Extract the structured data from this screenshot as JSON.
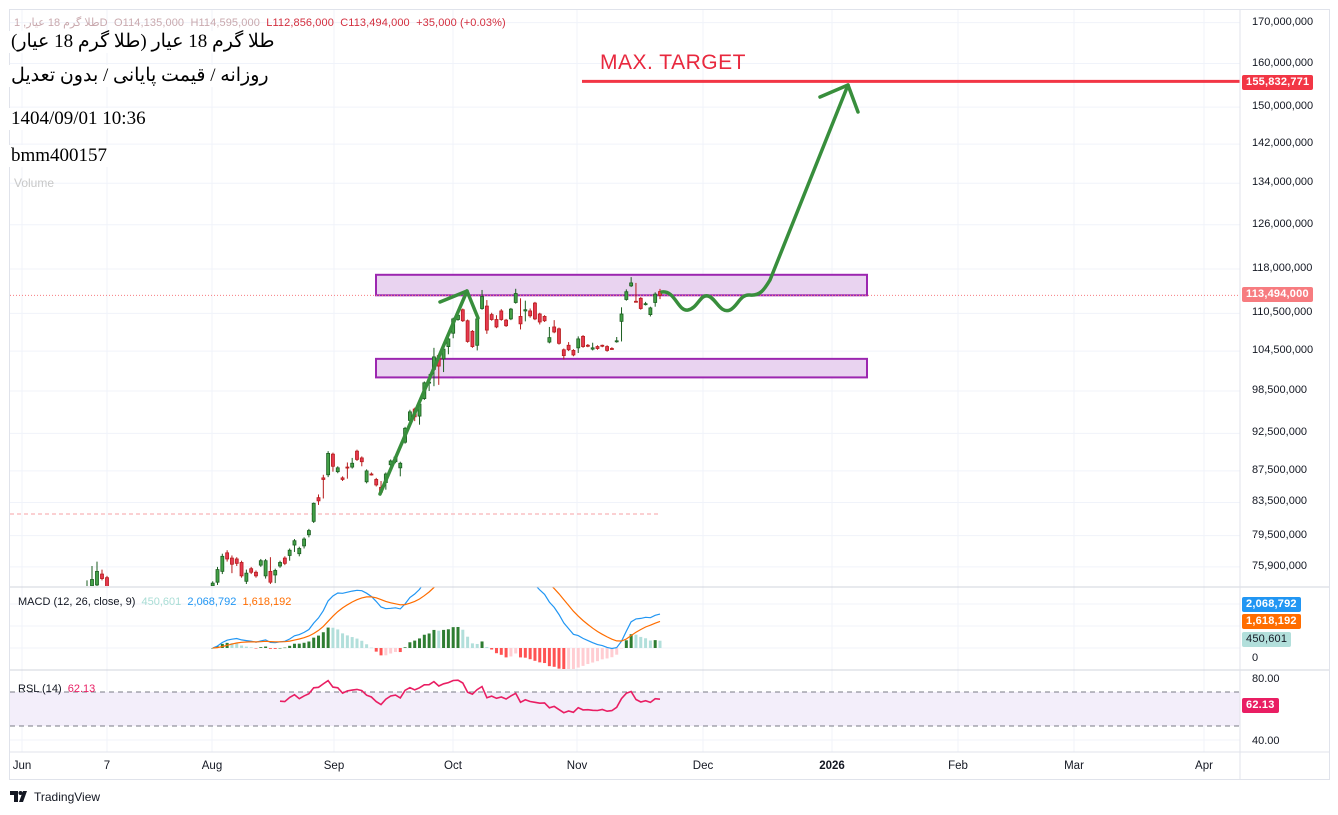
{
  "legend": {
    "symbol": "طلا گرم 18 عیار, 1D",
    "open": "O114,135,000",
    "high": "H114,595,000",
    "low": "L112,856,000",
    "close": "C113,494,000",
    "change": "+35,000 (+0.03%)",
    "volume_label": "Volume"
  },
  "titles": {
    "name": "طلا گرم 18 عیار (طلا گرم 18 عیار)",
    "subtitle": "روزانه / قیمت پایانی / بدون تعدیل",
    "datetime": "1404/09/01 10:36",
    "code": "bmm400157"
  },
  "annotations": {
    "max_target_label": "MAX. TARGET",
    "max_target_price": "155,832,771",
    "max_target_value": 155832771,
    "zone_upper": [
      113500000,
      117000000
    ],
    "zone_lower": [
      100500000,
      103300000
    ]
  },
  "colors": {
    "up": "#43a047",
    "up_border": "#1b5e20",
    "down": "#e53950",
    "down_border": "#b71c1c",
    "target": "#f23645",
    "zone_fill": "#e9d3f0",
    "zone_border": "#9c27b0",
    "drawing": "#388e3c",
    "macd": "#2196f3",
    "signal": "#ff6d00",
    "rsi": "#e91e63"
  },
  "price_axis": {
    "scale": "log",
    "ticks": [
      "170,000,000",
      "160,000,000",
      "150,000,000",
      "142,000,000",
      "134,000,000",
      "126,000,000",
      "118,000,000",
      "110,500,000",
      "104,500,000",
      "98,500,000",
      "92,500,000",
      "87,500,000",
      "83,500,000",
      "79,500,000",
      "75,900,000"
    ],
    "tick_values": [
      170000000,
      160000000,
      150000000,
      142000000,
      134000000,
      126000000,
      118000000,
      110500000,
      104500000,
      98500000,
      92500000,
      87500000,
      83500000,
      79500000,
      75900000
    ],
    "last_price": "113,494,000",
    "last_value": 113494000
  },
  "time_axis": {
    "labels": [
      "Jun",
      "7",
      "Aug",
      "Sep",
      "Oct",
      "Nov",
      "Dec",
      "2026",
      "Feb",
      "Mar",
      "Apr"
    ]
  },
  "macd": {
    "label": "MACD (12, 26, close, 9)",
    "histogram": "450,601",
    "macd": "2,068,792",
    "signal": "1,618,192",
    "zero": "0"
  },
  "rsi": {
    "label": "RSL (14)",
    "value": "62.13",
    "axis_top": "80.00",
    "axis_bottom": "40.00",
    "upper_band": 70,
    "lower_band": 30
  },
  "footer": {
    "brand": "TradingView"
  },
  "chart_data": {
    "type": "candlestick",
    "title": "طلا گرم 18 عیار (طلا گرم 18 عیار)",
    "interval": "1D",
    "y_scale": "log",
    "ylim": [
      74000000,
      172000000
    ],
    "grid": true,
    "candles_millions_fields": [
      "open",
      "high",
      "low",
      "close"
    ],
    "early_candles_millions": [
      [
        73.5,
        74.4,
        73.0,
        73.7
      ],
      [
        73.8,
        76.0,
        73.4,
        74.5
      ],
      [
        73.9,
        76.5,
        73.4,
        75.4
      ],
      [
        75.1,
        75.6,
        74.4,
        74.6
      ],
      [
        74.7,
        74.9,
        73.0,
        73.6
      ]
    ],
    "candles_millions": [
      [
        73.8,
        74.3,
        73.5,
        74.1
      ],
      [
        74.2,
        75.9,
        73.9,
        75.6
      ],
      [
        75.4,
        77.4,
        75.1,
        77.1
      ],
      [
        77.5,
        77.8,
        76.5,
        76.8
      ],
      [
        76.9,
        77.2,
        75.2,
        76.2
      ],
      [
        76.8,
        77.0,
        76.0,
        76.3
      ],
      [
        76.4,
        76.6,
        74.7,
        74.9
      ],
      [
        74.3,
        75.6,
        74.0,
        75.2
      ],
      [
        75.7,
        75.9,
        75.1,
        75.3
      ],
      [
        75.3,
        75.5,
        74.7,
        74.9
      ],
      [
        76.1,
        76.8,
        75.9,
        76.6
      ],
      [
        74.9,
        76.8,
        74.6,
        76.6
      ],
      [
        75.4,
        77.0,
        74.0,
        74.2
      ],
      [
        75.0,
        75.7,
        74.1,
        75.5
      ],
      [
        76.0,
        76.6,
        75.8,
        76.4
      ],
      [
        76.9,
        77.1,
        76.1,
        76.3
      ],
      [
        77.2,
        78.0,
        76.6,
        77.8
      ],
      [
        78.4,
        79.1,
        77.6,
        78.9
      ],
      [
        77.4,
        78.2,
        77.1,
        78.0
      ],
      [
        78.3,
        79.3,
        78.0,
        79.1
      ],
      [
        79.6,
        80.3,
        79.3,
        80.1
      ],
      [
        81.2,
        83.5,
        81.0,
        83.4
      ],
      [
        84.1,
        84.5,
        83.2,
        83.7
      ],
      [
        86.6,
        87.0,
        84.0,
        86.4
      ],
      [
        87.0,
        90.1,
        86.7,
        89.8
      ],
      [
        89.7,
        89.9,
        87.4,
        88.1
      ],
      [
        87.4,
        88.1,
        87.2,
        87.9
      ],
      [
        86.6,
        86.8,
        86.2,
        86.4
      ],
      [
        88.0,
        88.6,
        86.5,
        87.9
      ],
      [
        88.0,
        89.2,
        87.8,
        88.5
      ],
      [
        90.1,
        90.3,
        88.8,
        89.0
      ],
      [
        89.2,
        89.4,
        88.1,
        88.7
      ],
      [
        86.1,
        87.7,
        85.9,
        87.5
      ],
      [
        87.1,
        87.3,
        86.9,
        87.0
      ],
      [
        86.4,
        86.6,
        85.5,
        85.7
      ],
      [
        85.4,
        86.2,
        84.6,
        84.8
      ],
      [
        86.0,
        87.3,
        85.1,
        87.1
      ],
      [
        88.3,
        89.0,
        87.7,
        88.8
      ],
      [
        88.7,
        89.5,
        88.5,
        89.3
      ],
      [
        87.9,
        88.7,
        86.8,
        88.5
      ],
      [
        91.3,
        93.4,
        91.1,
        93.2
      ],
      [
        94.3,
        95.8,
        94.1,
        95.5
      ],
      [
        95.9,
        96.1,
        94.2,
        94.8
      ],
      [
        94.9,
        96.8,
        93.7,
        96.6
      ],
      [
        97.4,
        99.9,
        97.2,
        99.7
      ],
      [
        99.7,
        101.0,
        98.5,
        99.8
      ],
      [
        101.7,
        105.0,
        99.2,
        103.6
      ],
      [
        103.8,
        104.0,
        99.4,
        102.2
      ],
      [
        103.3,
        105.0,
        101.3,
        104.8
      ],
      [
        105.2,
        106.6,
        104.0,
        106.4
      ],
      [
        107.3,
        109.8,
        106.5,
        109.6
      ],
      [
        109.5,
        110.6,
        109.3,
        110.2
      ],
      [
        111.1,
        111.3,
        109.1,
        109.3
      ],
      [
        109.3,
        109.5,
        105.8,
        106.0
      ],
      [
        107.6,
        107.8,
        105.0,
        105.2
      ],
      [
        105.4,
        109.8,
        104.6,
        109.6
      ],
      [
        111.3,
        114.4,
        111.1,
        113.3
      ],
      [
        111.7,
        112.7,
        107.2,
        107.8
      ],
      [
        110.3,
        110.6,
        109.3,
        109.5
      ],
      [
        109.5,
        110.2,
        108.1,
        108.3
      ],
      [
        110.9,
        111.2,
        109.3,
        109.5
      ],
      [
        109.4,
        109.6,
        108.3,
        108.5
      ],
      [
        109.6,
        111.4,
        109.4,
        111.2
      ],
      [
        112.3,
        114.6,
        112.1,
        113.8
      ],
      [
        110.0,
        113.0,
        107.9,
        108.8
      ],
      [
        110.9,
        112.6,
        109.2,
        111.1
      ],
      [
        110.9,
        111.3,
        109.8,
        110.1
      ],
      [
        112.2,
        112.4,
        109.4,
        109.6
      ],
      [
        110.4,
        110.6,
        108.7,
        109.1
      ],
      [
        110.0,
        110.2,
        109.1,
        109.3
      ],
      [
        105.9,
        108.3,
        105.7,
        106.6
      ],
      [
        108.3,
        109.4,
        107.3,
        107.5
      ],
      [
        108.0,
        108.2,
        105.5,
        105.7
      ],
      [
        104.7,
        104.9,
        103.2,
        103.8
      ],
      [
        105.4,
        105.9,
        104.5,
        104.7
      ],
      [
        104.6,
        104.8,
        103.7,
        103.9
      ],
      [
        105.0,
        106.8,
        104.2,
        106.4
      ],
      [
        106.8,
        107.0,
        105.0,
        105.2
      ],
      [
        105.4,
        105.6,
        105.1,
        105.3
      ],
      [
        104.8,
        105.8,
        104.6,
        105.0
      ],
      [
        105.2,
        105.4,
        104.7,
        104.9
      ],
      [
        105.4,
        105.5,
        105.1,
        105.3
      ],
      [
        105.2,
        105.4,
        104.4,
        104.6
      ],
      [
        104.9,
        105.1,
        104.7,
        104.8
      ],
      [
        106.0,
        106.7,
        105.8,
        106.1
      ],
      [
        109.2,
        111.5,
        106.0,
        110.4
      ],
      [
        112.8,
        114.5,
        112.6,
        114.1
      ],
      [
        115.1,
        116.6,
        114.9,
        115.6
      ],
      [
        112.5,
        115.6,
        112.3,
        112.4
      ],
      [
        113.0,
        113.2,
        111.1,
        111.3
      ],
      [
        112.0,
        112.4,
        111.8,
        112.1
      ],
      [
        110.3,
        111.6,
        110.0,
        111.4
      ],
      [
        112.3,
        114.0,
        111.6,
        113.7
      ],
      [
        114.135,
        114.595,
        112.856,
        113.494
      ]
    ]
  }
}
